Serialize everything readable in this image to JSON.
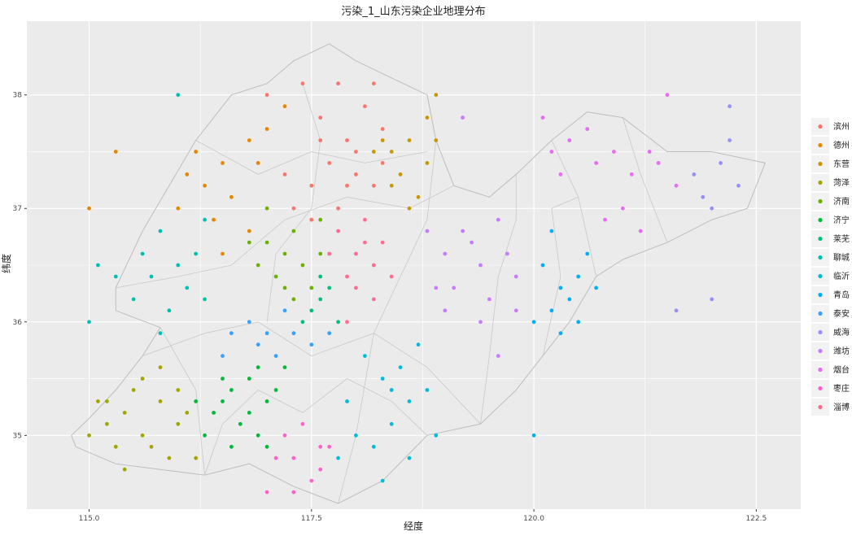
{
  "chart_data": {
    "type": "scatter",
    "title": "污染_1_山东污染企业地理分布",
    "xlabel": "经度",
    "ylabel": "纬度",
    "xlim": [
      114.3,
      123.0
    ],
    "ylim": [
      34.35,
      38.65
    ],
    "x_ticks": [
      115.0,
      117.5,
      120.0,
      122.5
    ],
    "x_tick_labels": [
      "115.0",
      "117.5",
      "120.0",
      "122.5"
    ],
    "y_ticks": [
      35,
      36,
      37,
      38
    ],
    "y_tick_labels": [
      "35",
      "36",
      "37",
      "38"
    ],
    "grid": true,
    "legend_position": "right",
    "series": [
      {
        "name": "滨州",
        "color": "#F8766D",
        "points": [
          [
            117.0,
            38.0
          ],
          [
            117.4,
            38.1
          ],
          [
            117.8,
            38.1
          ],
          [
            118.2,
            38.1
          ],
          [
            117.6,
            37.8
          ],
          [
            118.1,
            37.9
          ],
          [
            117.9,
            37.6
          ],
          [
            118.3,
            37.7
          ],
          [
            117.7,
            37.4
          ],
          [
            118.0,
            37.3
          ],
          [
            117.5,
            37.2
          ],
          [
            118.2,
            37.2
          ],
          [
            117.8,
            37.0
          ],
          [
            117.3,
            37.0
          ],
          [
            118.0,
            37.5
          ],
          [
            117.6,
            37.6
          ],
          [
            117.9,
            37.2
          ],
          [
            118.3,
            37.4
          ],
          [
            117.2,
            37.3
          ],
          [
            117.5,
            36.9
          ]
        ]
      },
      {
        "name": "德州",
        "color": "#E58700",
        "points": [
          [
            115.0,
            37.0
          ],
          [
            115.3,
            37.5
          ],
          [
            116.0,
            37.0
          ],
          [
            116.3,
            37.2
          ],
          [
            116.5,
            37.4
          ],
          [
            116.8,
            37.6
          ],
          [
            116.2,
            37.5
          ],
          [
            116.6,
            37.1
          ],
          [
            116.8,
            36.8
          ],
          [
            116.4,
            36.9
          ],
          [
            117.0,
            37.7
          ],
          [
            117.2,
            37.9
          ],
          [
            116.1,
            37.3
          ],
          [
            116.9,
            37.4
          ],
          [
            116.5,
            36.6
          ]
        ]
      },
      {
        "name": "东营",
        "color": "#C99800",
        "points": [
          [
            118.4,
            37.5
          ],
          [
            118.6,
            37.6
          ],
          [
            118.8,
            37.8
          ],
          [
            118.5,
            37.3
          ],
          [
            118.7,
            37.1
          ],
          [
            118.9,
            37.6
          ],
          [
            118.3,
            37.6
          ],
          [
            118.6,
            37.0
          ],
          [
            118.4,
            37.2
          ],
          [
            118.8,
            37.4
          ],
          [
            118.9,
            38.0
          ],
          [
            118.2,
            37.5
          ]
        ]
      },
      {
        "name": "菏泽",
        "color": "#A3A500",
        "points": [
          [
            115.1,
            35.3
          ],
          [
            115.4,
            35.2
          ],
          [
            115.6,
            35.0
          ],
          [
            115.8,
            35.3
          ],
          [
            116.0,
            35.4
          ],
          [
            115.2,
            35.1
          ],
          [
            115.5,
            35.4
          ],
          [
            115.7,
            34.9
          ],
          [
            115.9,
            34.8
          ],
          [
            116.1,
            35.2
          ],
          [
            115.3,
            34.9
          ],
          [
            115.0,
            35.0
          ],
          [
            116.2,
            34.8
          ],
          [
            115.6,
            35.5
          ],
          [
            115.8,
            35.6
          ],
          [
            115.4,
            34.7
          ],
          [
            116.0,
            35.1
          ],
          [
            115.2,
            35.3
          ]
        ]
      },
      {
        "name": "济南",
        "color": "#6BB100",
        "points": [
          [
            117.0,
            36.7
          ],
          [
            117.2,
            36.6
          ],
          [
            117.4,
            36.5
          ],
          [
            117.6,
            36.6
          ],
          [
            117.1,
            36.4
          ],
          [
            117.3,
            36.8
          ],
          [
            116.9,
            36.5
          ],
          [
            117.5,
            36.3
          ],
          [
            116.8,
            36.7
          ],
          [
            117.3,
            36.2
          ],
          [
            117.6,
            36.9
          ],
          [
            117.0,
            37.0
          ],
          [
            117.2,
            36.3
          ]
        ]
      },
      {
        "name": "济宁",
        "color": "#00BA38",
        "points": [
          [
            116.6,
            35.4
          ],
          [
            116.8,
            35.5
          ],
          [
            117.0,
            35.3
          ],
          [
            116.4,
            35.2
          ],
          [
            116.7,
            35.1
          ],
          [
            116.9,
            35.6
          ],
          [
            117.1,
            35.4
          ],
          [
            116.5,
            35.5
          ],
          [
            116.2,
            35.3
          ],
          [
            116.6,
            34.9
          ],
          [
            116.9,
            35.0
          ],
          [
            117.2,
            35.6
          ],
          [
            116.3,
            35.0
          ],
          [
            116.8,
            35.2
          ],
          [
            117.0,
            34.9
          ],
          [
            116.5,
            35.3
          ]
        ]
      },
      {
        "name": "莱芜",
        "color": "#00BF7D",
        "points": [
          [
            117.6,
            36.2
          ],
          [
            117.7,
            36.3
          ],
          [
            117.5,
            36.1
          ],
          [
            117.8,
            36.0
          ],
          [
            117.6,
            36.4
          ],
          [
            117.4,
            36.0
          ]
        ]
      },
      {
        "name": "聊城",
        "color": "#00C0AF",
        "points": [
          [
            115.0,
            36.0
          ],
          [
            115.3,
            36.4
          ],
          [
            115.6,
            36.6
          ],
          [
            115.8,
            36.8
          ],
          [
            116.0,
            36.5
          ],
          [
            116.2,
            36.6
          ],
          [
            115.5,
            36.2
          ],
          [
            115.9,
            36.1
          ],
          [
            116.1,
            36.3
          ],
          [
            115.7,
            36.4
          ],
          [
            116.3,
            36.9
          ],
          [
            116.0,
            38.0
          ],
          [
            115.1,
            36.5
          ],
          [
            116.3,
            36.2
          ],
          [
            115.8,
            35.9
          ]
        ]
      },
      {
        "name": "临沂",
        "color": "#00BCD8",
        "points": [
          [
            118.0,
            35.0
          ],
          [
            118.2,
            34.9
          ],
          [
            118.4,
            35.1
          ],
          [
            118.6,
            35.3
          ],
          [
            118.3,
            35.5
          ],
          [
            118.5,
            35.6
          ],
          [
            118.8,
            35.4
          ],
          [
            118.1,
            35.7
          ],
          [
            117.9,
            35.3
          ],
          [
            118.6,
            34.8
          ],
          [
            118.3,
            34.6
          ],
          [
            117.8,
            34.8
          ],
          [
            118.9,
            35.0
          ],
          [
            118.7,
            35.8
          ],
          [
            118.4,
            35.4
          ]
        ]
      },
      {
        "name": "青岛",
        "color": "#00B0F6",
        "points": [
          [
            120.2,
            36.1
          ],
          [
            120.3,
            36.3
          ],
          [
            120.4,
            36.2
          ],
          [
            120.5,
            36.0
          ],
          [
            120.1,
            36.5
          ],
          [
            120.6,
            36.6
          ],
          [
            120.0,
            36.0
          ],
          [
            120.3,
            35.9
          ],
          [
            120.5,
            36.4
          ],
          [
            120.7,
            36.3
          ],
          [
            120.0,
            35.0
          ],
          [
            120.2,
            36.8
          ]
        ]
      },
      {
        "name": "泰安",
        "color": "#35A2FF",
        "points": [
          [
            116.8,
            36.0
          ],
          [
            117.0,
            35.9
          ],
          [
            117.2,
            36.1
          ],
          [
            116.6,
            35.9
          ],
          [
            117.1,
            35.7
          ],
          [
            117.7,
            35.9
          ],
          [
            116.5,
            35.7
          ],
          [
            116.9,
            35.8
          ],
          [
            117.3,
            35.9
          ],
          [
            117.5,
            35.8
          ]
        ]
      },
      {
        "name": "威海",
        "color": "#9590FF",
        "points": [
          [
            121.9,
            37.1
          ],
          [
            122.1,
            37.4
          ],
          [
            122.2,
            37.6
          ],
          [
            122.0,
            37.0
          ],
          [
            122.3,
            37.2
          ],
          [
            121.8,
            37.3
          ],
          [
            122.2,
            37.9
          ],
          [
            121.6,
            36.1
          ],
          [
            122.0,
            36.2
          ]
        ]
      },
      {
        "name": "潍坊",
        "color": "#C77CFF",
        "points": [
          [
            119.0,
            36.6
          ],
          [
            119.2,
            36.8
          ],
          [
            119.4,
            36.5
          ],
          [
            119.6,
            36.9
          ],
          [
            119.1,
            36.3
          ],
          [
            119.5,
            36.2
          ],
          [
            119.8,
            36.4
          ],
          [
            119.3,
            36.7
          ],
          [
            118.8,
            36.8
          ],
          [
            119.7,
            36.6
          ],
          [
            119.0,
            36.1
          ],
          [
            119.4,
            36.0
          ],
          [
            118.9,
            36.3
          ],
          [
            119.6,
            35.7
          ],
          [
            119.2,
            37.8
          ],
          [
            119.8,
            36.1
          ]
        ]
      },
      {
        "name": "烟台",
        "color": "#E76BF3",
        "points": [
          [
            120.2,
            37.5
          ],
          [
            120.4,
            37.6
          ],
          [
            120.6,
            37.7
          ],
          [
            120.9,
            37.5
          ],
          [
            121.1,
            37.3
          ],
          [
            121.3,
            37.5
          ],
          [
            120.3,
            37.3
          ],
          [
            120.7,
            37.4
          ],
          [
            121.0,
            37.0
          ],
          [
            121.4,
            37.4
          ],
          [
            120.1,
            37.8
          ],
          [
            121.6,
            37.2
          ],
          [
            121.5,
            38.0
          ],
          [
            120.8,
            36.9
          ],
          [
            121.2,
            36.8
          ]
        ]
      },
      {
        "name": "枣庄",
        "color": "#FF61CC",
        "points": [
          [
            117.3,
            34.8
          ],
          [
            117.5,
            34.6
          ],
          [
            117.2,
            35.0
          ],
          [
            117.6,
            34.9
          ],
          [
            117.4,
            35.1
          ],
          [
            117.0,
            34.5
          ],
          [
            117.3,
            34.5
          ],
          [
            117.6,
            34.7
          ],
          [
            117.7,
            34.9
          ],
          [
            117.1,
            34.8
          ]
        ]
      },
      {
        "name": "淄博",
        "color": "#FF6C91",
        "points": [
          [
            117.8,
            36.8
          ],
          [
            118.0,
            36.6
          ],
          [
            118.2,
            36.5
          ],
          [
            117.9,
            36.4
          ],
          [
            118.1,
            36.9
          ],
          [
            118.3,
            36.7
          ],
          [
            118.0,
            36.3
          ],
          [
            117.7,
            36.6
          ],
          [
            118.4,
            36.4
          ],
          [
            118.2,
            36.2
          ],
          [
            117.9,
            36.0
          ],
          [
            118.1,
            36.7
          ]
        ]
      }
    ]
  }
}
